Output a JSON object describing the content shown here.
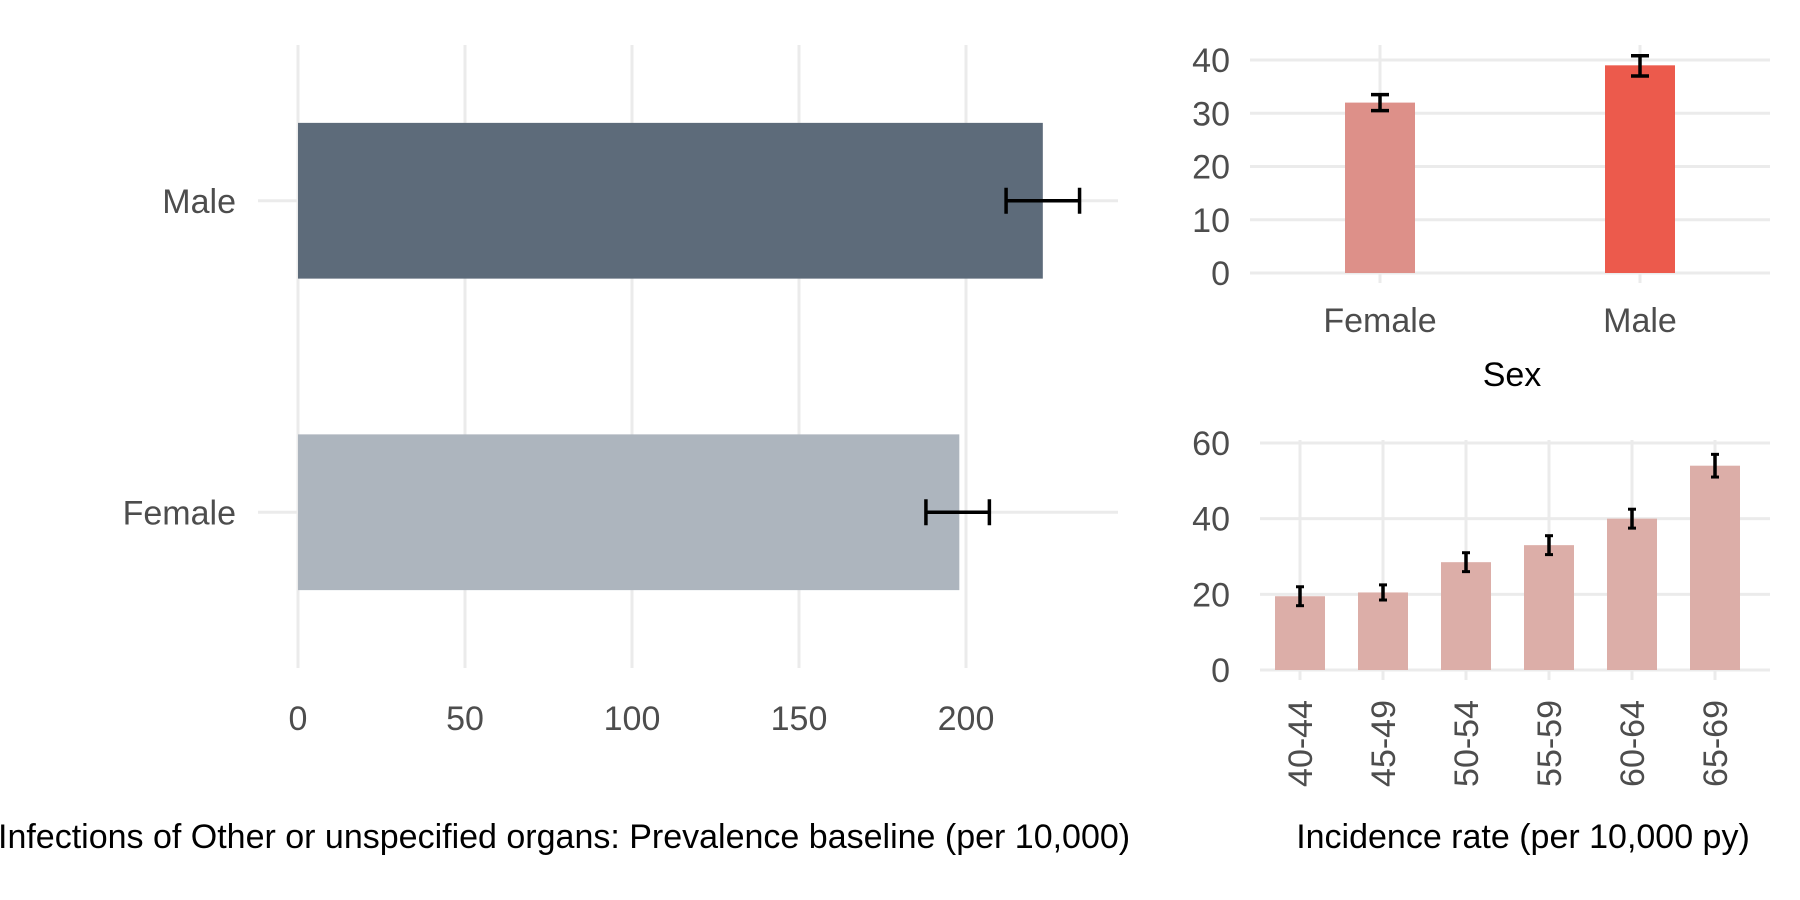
{
  "chart_data": [
    {
      "id": "prevalence",
      "type": "bar",
      "orientation": "horizontal",
      "categories": [
        "Female",
        "Male"
      ],
      "values": [
        198,
        223
      ],
      "error_low": [
        188,
        212
      ],
      "error_high": [
        207,
        234
      ],
      "colors": [
        "#adb5be",
        "#5d6b7a"
      ],
      "xlabel": "Infections of Other or unspecified organs: Prevalence baseline (per 10,000)",
      "ylabel": "",
      "xlim": [
        0,
        245
      ],
      "xticks": [
        0,
        50,
        100,
        150,
        200
      ],
      "grid": true,
      "legend": "none"
    },
    {
      "id": "incidence-sex",
      "type": "bar",
      "categories": [
        "Female",
        "Male"
      ],
      "values": [
        32,
        39
      ],
      "error_low": [
        30.5,
        37
      ],
      "error_high": [
        33.5,
        40.8
      ],
      "colors": [
        "#dd9089",
        "#ec5a4c"
      ],
      "xlabel": "Sex",
      "ylabel": "",
      "ylim": [
        0,
        42
      ],
      "yticks": [
        0,
        10,
        20,
        30,
        40
      ],
      "grid": true,
      "legend": "none"
    },
    {
      "id": "incidence-age",
      "type": "bar",
      "categories": [
        "40-44",
        "45-49",
        "50-54",
        "55-59",
        "60-64",
        "65-69"
      ],
      "values": [
        19.5,
        20.5,
        28.5,
        33,
        40,
        54
      ],
      "error_low": [
        17,
        18.5,
        26,
        30.5,
        37.5,
        51
      ],
      "error_high": [
        22,
        22.5,
        31,
        35.5,
        42.5,
        57
      ],
      "colors": [
        "#dcaea8"
      ],
      "xlabel": "Incidence rate (per 10,000 py)",
      "ylabel": "",
      "ylim": [
        0,
        62
      ],
      "yticks": [
        0,
        20,
        40,
        60
      ],
      "grid": true,
      "legend": "none"
    }
  ]
}
